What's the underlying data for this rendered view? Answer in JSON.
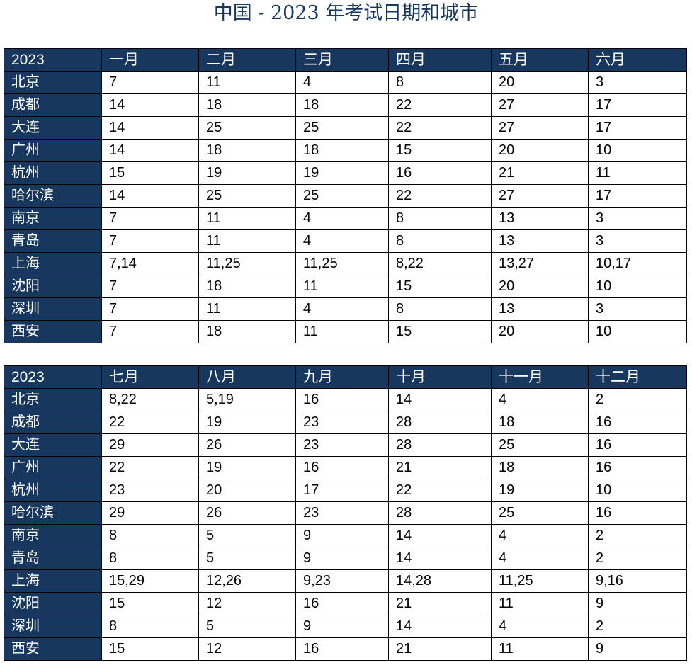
{
  "title": "中国 - 2023 年考试日期和城市",
  "colors": {
    "header_bg": "#17375e",
    "title": "#17375e"
  },
  "tables": [
    {
      "year": "2023",
      "months": [
        "一月",
        "二月",
        "三月",
        "四月",
        "五月",
        "六月"
      ],
      "rows": [
        {
          "city": "北京",
          "values": [
            "7",
            "11",
            "4",
            "8",
            "20",
            "3"
          ]
        },
        {
          "city": "成都",
          "values": [
            "14",
            "18",
            "18",
            "22",
            "27",
            "17"
          ]
        },
        {
          "city": "大连",
          "values": [
            "14",
            "25",
            "25",
            "22",
            "27",
            "17"
          ]
        },
        {
          "city": "广州",
          "values": [
            "14",
            "18",
            "18",
            "15",
            "20",
            "10"
          ]
        },
        {
          "city": "杭州",
          "values": [
            "15",
            "19",
            "19",
            "16",
            "21",
            "11"
          ]
        },
        {
          "city": "哈尔滨",
          "values": [
            "14",
            "25",
            "25",
            "22",
            "27",
            "17"
          ]
        },
        {
          "city": "南京",
          "values": [
            "7",
            "11",
            "4",
            "8",
            "13",
            "3"
          ]
        },
        {
          "city": "青岛",
          "values": [
            "7",
            "11",
            "4",
            "8",
            "13",
            "3"
          ]
        },
        {
          "city": "上海",
          "values": [
            "7,14",
            "11,25",
            "11,25",
            "8,22",
            "13,27",
            "10,17"
          ]
        },
        {
          "city": "沈阳",
          "values": [
            "7",
            "18",
            "11",
            "15",
            "20",
            "10"
          ]
        },
        {
          "city": "深圳",
          "values": [
            "7",
            "11",
            "4",
            "8",
            "13",
            "3"
          ]
        },
        {
          "city": "西安",
          "values": [
            "7",
            "18",
            "11",
            "15",
            "20",
            "10"
          ]
        }
      ]
    },
    {
      "year": "2023",
      "months": [
        "七月",
        "八月",
        "九月",
        "十月",
        "十一月",
        "十二月"
      ],
      "rows": [
        {
          "city": "北京",
          "values": [
            "8,22",
            "5,19",
            "16",
            "14",
            "4",
            "2"
          ]
        },
        {
          "city": "成都",
          "values": [
            "22",
            "19",
            "23",
            "28",
            "18",
            "16"
          ]
        },
        {
          "city": "大连",
          "values": [
            "29",
            "26",
            "23",
            "28",
            "25",
            "16"
          ]
        },
        {
          "city": "广州",
          "values": [
            "22",
            "19",
            "16",
            "21",
            "18",
            "16"
          ]
        },
        {
          "city": "杭州",
          "values": [
            "23",
            "20",
            "17",
            "22",
            "19",
            "10"
          ]
        },
        {
          "city": "哈尔滨",
          "values": [
            "29",
            "26",
            "23",
            "28",
            "25",
            "16"
          ]
        },
        {
          "city": "南京",
          "values": [
            "8",
            "5",
            "9",
            "14",
            "4",
            "2"
          ]
        },
        {
          "city": "青岛",
          "values": [
            "8",
            "5",
            "9",
            "14",
            "4",
            "2"
          ]
        },
        {
          "city": "上海",
          "values": [
            "15,29",
            "12,26",
            "9,23",
            "14,28",
            "11,25",
            "9,16"
          ]
        },
        {
          "city": "沈阳",
          "values": [
            "15",
            "12",
            "16",
            "21",
            "11",
            "9"
          ]
        },
        {
          "city": "深圳",
          "values": [
            "8",
            "5",
            "9",
            "14",
            "4",
            "2"
          ]
        },
        {
          "city": "西安",
          "values": [
            "15",
            "12",
            "16",
            "21",
            "11",
            "9"
          ]
        }
      ]
    }
  ]
}
